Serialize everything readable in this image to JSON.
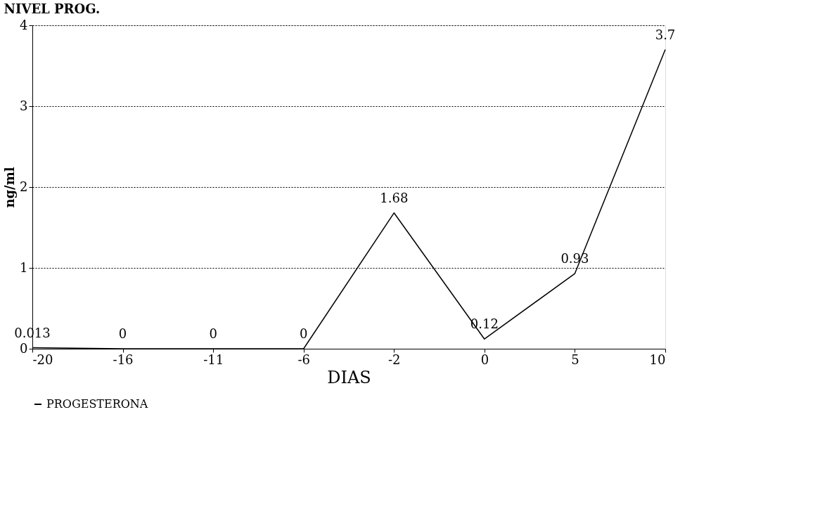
{
  "chart_data": {
    "type": "line",
    "title": "NIVEL PROG.",
    "xlabel": "DIAS",
    "ylabel": "ng/ml",
    "categories": [
      "-20",
      "-16",
      "-11",
      "-6",
      "-2",
      "0",
      "5",
      "10"
    ],
    "series": [
      {
        "name": "PROGESTERONA",
        "color": "#000000",
        "values": [
          0.013,
          0,
          0,
          0,
          1.68,
          0.12,
          0.93,
          3.7
        ]
      }
    ],
    "ylim": [
      0,
      4
    ],
    "yticks": [
      0,
      1,
      2,
      3,
      4
    ],
    "grid": "y",
    "legend": "bottom",
    "data_labels": true,
    "marker": "none",
    "line_style": "solid"
  }
}
